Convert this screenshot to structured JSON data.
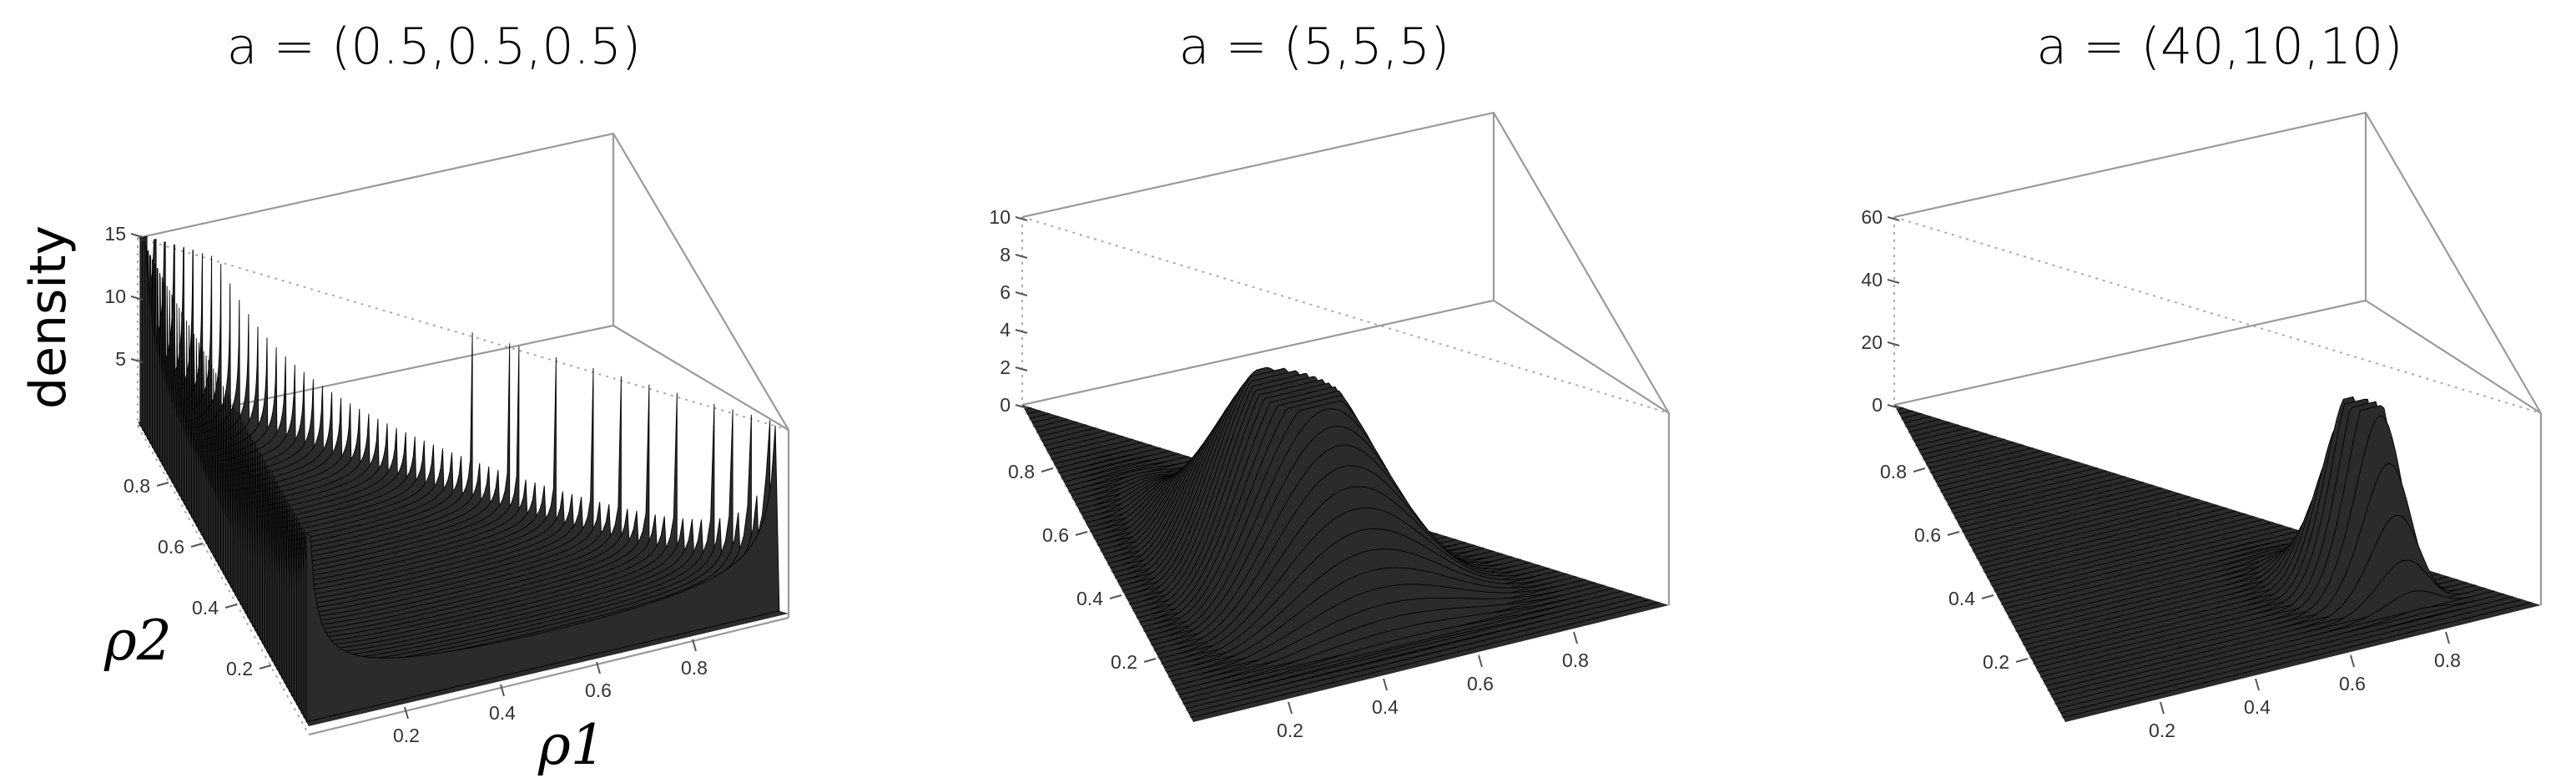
{
  "chart_data": [
    {
      "type": "surface",
      "title": "a = (0.5,0.5,0.5)",
      "alpha": [
        0.5,
        0.5,
        0.5
      ],
      "zlabel": "density",
      "xlabel": "ρ1",
      "ylabel": "ρ2",
      "zticks": [
        "5",
        "10",
        "15"
      ],
      "zrange": [
        0,
        15
      ],
      "x_ticks": [
        "0.2",
        "0.4",
        "0.6",
        "0.8"
      ],
      "y_ticks": [
        "0.2",
        "0.4",
        "0.6",
        "0.8"
      ],
      "xlim": [
        0,
        1
      ],
      "ylim": [
        0,
        1
      ],
      "surface_color": "#2b2b2b"
    },
    {
      "type": "surface",
      "title": "a = (5,5,5)",
      "alpha": [
        5,
        5,
        5
      ],
      "zticks": [
        "0",
        "2",
        "4",
        "6",
        "8",
        "10"
      ],
      "zrange": [
        0,
        10
      ],
      "x_ticks": [
        "0.2",
        "0.4",
        "0.6",
        "0.8"
      ],
      "y_ticks": [
        "0.2",
        "0.4",
        "0.6",
        "0.8"
      ],
      "xlim": [
        0,
        1
      ],
      "ylim": [
        0,
        1
      ],
      "surface_color": "#2b2b2b"
    },
    {
      "type": "surface",
      "title": "a = (40,10,10)",
      "alpha": [
        40,
        10,
        10
      ],
      "zticks": [
        "0",
        "20",
        "40",
        "60"
      ],
      "zrange": [
        0,
        60
      ],
      "x_ticks": [
        "0.2",
        "0.4",
        "0.6",
        "0.8"
      ],
      "y_ticks": [
        "0.2",
        "0.4",
        "0.6",
        "0.8"
      ],
      "xlim": [
        0,
        1
      ],
      "ylim": [
        0,
        1
      ],
      "surface_color": "#2b2b2b"
    }
  ]
}
